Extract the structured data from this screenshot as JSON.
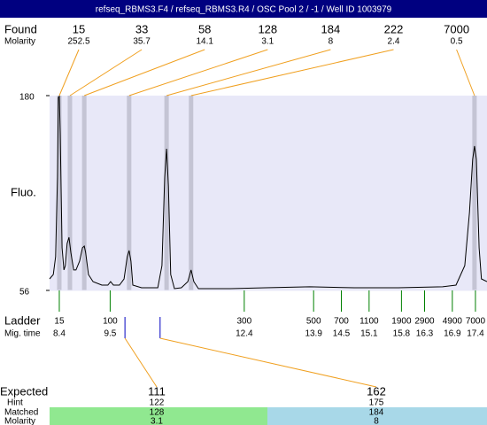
{
  "title": "refseq_RBMS3.F4 / refseq_RBMS3.R4 / OSC Pool 2 / -1 / Well ID 1003979",
  "found_label": "Found",
  "molarity_label": "Molarity",
  "chart_data": {
    "type": "line",
    "ylabel": "Fluo.",
    "ylim": [
      56,
      180
    ],
    "yticks": [
      56,
      180
    ],
    "xlim": [
      8.19,
      17.65
    ],
    "x": [
      8.19,
      8.27,
      8.32,
      8.36,
      8.38,
      8.4,
      8.42,
      8.46,
      8.5,
      8.53,
      8.57,
      8.61,
      8.65,
      8.71,
      8.76,
      8.84,
      8.9,
      8.94,
      8.97,
      9.03,
      9.13,
      9.32,
      9.45,
      9.51,
      9.57,
      9.7,
      9.8,
      9.87,
      9.91,
      9.95,
      9.99,
      10.18,
      10.53,
      10.62,
      10.68,
      10.72,
      10.76,
      10.81,
      10.89,
      11.04,
      11.18,
      11.25,
      11.31,
      11.41,
      12.1,
      12.86,
      13.82,
      14.78,
      15.73,
      16.69,
      16.98,
      17.17,
      17.27,
      17.34,
      17.38,
      17.42,
      17.48,
      17.53,
      17.65
    ],
    "series": [
      {
        "color": "#000000",
        "values": [
          63.3,
          66.1,
          77.4,
          128.1,
          178.9,
          179.5,
          156.3,
          83.1,
          69.0,
          71.8,
          85.9,
          89.8,
          80.2,
          69.0,
          69.0,
          74.6,
          83.1,
          84.2,
          80.2,
          66.1,
          61.6,
          59.4,
          59.4,
          61.6,
          59.4,
          59.4,
          63.3,
          77.4,
          81.4,
          74.6,
          59.4,
          57.7,
          57.7,
          71.8,
          128.1,
          146.2,
          122.5,
          66.1,
          57.1,
          57.7,
          61.6,
          69.0,
          61.6,
          57.1,
          57.1,
          57.7,
          58.3,
          57.7,
          57.7,
          58.3,
          59.4,
          71.8,
          105.6,
          139.4,
          147.9,
          139.4,
          83.1,
          63.3,
          61.6
        ]
      }
    ],
    "peaks": [
      {
        "size": 15,
        "molarity": 252.5,
        "time": 8.4
      },
      {
        "size": 33,
        "molarity": 35.7,
        "time": 8.63
      },
      {
        "size": 58,
        "molarity": 14.1,
        "time": 8.94
      },
      {
        "size": 128,
        "molarity": 3.1,
        "time": 9.91
      },
      {
        "size": 184,
        "molarity": 8,
        "time": 10.72
      },
      {
        "size": 222,
        "molarity": 2.4,
        "time": 11.25
      },
      {
        "size": 7000,
        "molarity": 0.5,
        "time": 17.38
      }
    ]
  },
  "ladder_label": "Ladder",
  "mig_time_label": "Mig. time",
  "ladder": [
    {
      "size": 15,
      "time": 8.4
    },
    {
      "size": 100,
      "time": 9.5
    },
    {
      "size": 300,
      "time": 12.4
    },
    {
      "size": 500,
      "time": 13.9
    },
    {
      "size": 700,
      "time": 14.5
    },
    {
      "size": 1100,
      "time": 15.1
    },
    {
      "size": 1900,
      "time": 15.8
    },
    {
      "size": 2900,
      "time": 16.3
    },
    {
      "size": 4900,
      "time": 16.9
    },
    {
      "size": 7000,
      "time": 17.4
    }
  ],
  "expected_label": "Expected",
  "hint_label": "Hint",
  "matched_label": "Matched",
  "molarity_row_label": "Molarity",
  "expected": [
    {
      "expected": 111,
      "hint": 122,
      "matched": 128,
      "molarity": 3.1,
      "ladder_time": 9.82
    },
    {
      "expected": 162,
      "hint": 175,
      "matched": 184,
      "molarity": 8,
      "ladder_time": 10.58
    }
  ]
}
